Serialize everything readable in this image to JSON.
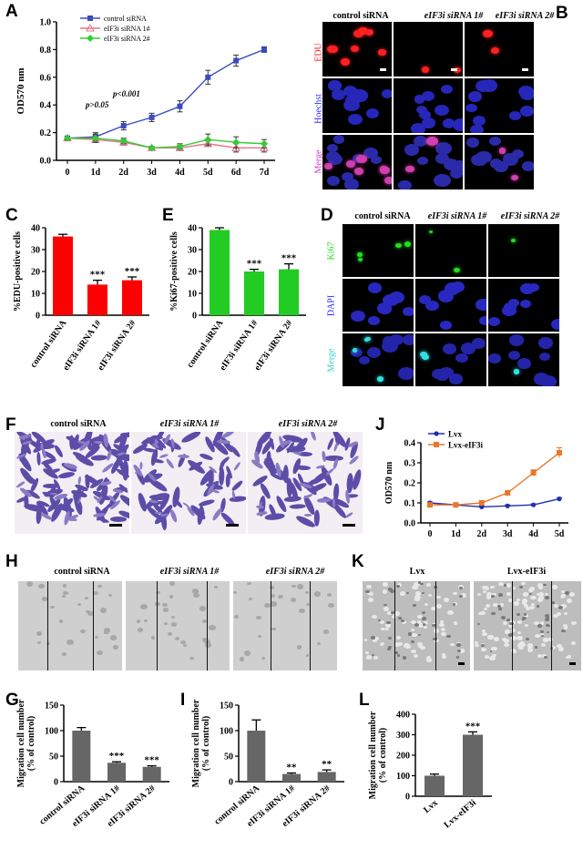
{
  "panels": {
    "A": "A",
    "B": "B",
    "C": "C",
    "D": "D",
    "E": "E",
    "F": "F",
    "G": "G",
    "H": "H",
    "I": "I",
    "J": "J",
    "K": "K",
    "L": "L"
  },
  "colors": {
    "control": "#3b4cc0",
    "si1": "#e6738a",
    "si2": "#33cc33",
    "red_bar": "#ff0000",
    "green_bar": "#22cc22",
    "gray_bar": "#666666",
    "lvx": "#1f2fb0",
    "lvx_eif3i": "#e8782a",
    "edu": "#ff2020",
    "hoechst": "#2a2aff",
    "ki67": "#22dd22",
    "merge_label": "#cc33cc",
    "merge_d": "#33cccc"
  },
  "chart_data": [
    {
      "id": "A",
      "type": "line",
      "xlabel": "",
      "ylabel": "OD570 nm",
      "ylim": [
        0,
        1.0
      ],
      "yticks": [
        "0.0",
        "0.2",
        "0.4",
        "0.6",
        "0.8",
        "1.0"
      ],
      "categories": [
        "0",
        "1d",
        "2d",
        "3d",
        "4d",
        "5d",
        "6d",
        "7d"
      ],
      "series": [
        {
          "name": "control siRNA",
          "values": [
            0.16,
            0.17,
            0.25,
            0.31,
            0.39,
            0.6,
            0.72,
            0.8
          ]
        },
        {
          "name": "eIF3i siRNA 1#",
          "values": [
            0.16,
            0.15,
            0.13,
            0.09,
            0.09,
            0.12,
            0.09,
            0.09
          ]
        },
        {
          "name": "eIF3i siRNA 2#",
          "values": [
            0.16,
            0.16,
            0.14,
            0.09,
            0.1,
            0.15,
            0.13,
            0.12
          ]
        }
      ],
      "annotations": [
        "p>0.05",
        "p<0.001"
      ]
    },
    {
      "id": "C",
      "type": "bar",
      "ylabel": "%EDU-positive cells",
      "ylim": [
        0,
        40
      ],
      "yticks": [
        "0",
        "10",
        "20",
        "30",
        "40"
      ],
      "categories": [
        "control siRNA",
        "eIF3i siRNA 1#",
        "eIF3i siRNA 2#"
      ],
      "values": [
        36,
        14,
        16
      ],
      "errors": [
        1,
        2,
        1.5
      ],
      "sig": [
        "",
        "***",
        "***"
      ]
    },
    {
      "id": "E",
      "type": "bar",
      "ylabel": "%Ki67-positive cells",
      "ylim": [
        0,
        40
      ],
      "yticks": [
        "0",
        "10",
        "20",
        "30",
        "40"
      ],
      "categories": [
        "control siRNA",
        "eIF3i siRNA 1#",
        "eIF3i siRNA 2#"
      ],
      "values": [
        39,
        20,
        21
      ],
      "errors": [
        1,
        1,
        2.5
      ],
      "sig": [
        "",
        "***",
        "***"
      ]
    },
    {
      "id": "J",
      "type": "line",
      "ylabel": "OD570 nm",
      "ylim": [
        0,
        0.4
      ],
      "yticks": [
        "0.0",
        "0.1",
        "0.2",
        "0.3",
        "0.4"
      ],
      "categories": [
        "0",
        "1d",
        "2d",
        "3d",
        "4d",
        "5d"
      ],
      "series": [
        {
          "name": "Lvx",
          "values": [
            0.1,
            0.09,
            0.08,
            0.085,
            0.09,
            0.12
          ]
        },
        {
          "name": "Lvx-eIF3i",
          "values": [
            0.09,
            0.09,
            0.1,
            0.15,
            0.25,
            0.35
          ]
        }
      ]
    },
    {
      "id": "G",
      "type": "bar",
      "ylabel": "Migration cell number\n(% of control)",
      "ylim": [
        0,
        150
      ],
      "yticks": [
        "0",
        "50",
        "100",
        "150"
      ],
      "categories": [
        "control siRNA",
        "eIF3i siRNA 1#",
        "eIF3i siRNA 2#"
      ],
      "values": [
        100,
        37,
        29
      ],
      "errors": [
        6,
        2,
        2
      ],
      "sig": [
        "",
        "***",
        "***"
      ]
    },
    {
      "id": "I",
      "type": "bar",
      "ylabel": "Migration cell number\n(% of control)",
      "ylim": [
        0,
        150
      ],
      "yticks": [
        "0",
        "50",
        "100",
        "150"
      ],
      "categories": [
        "control siRNA",
        "eIF3i siRNA 1#",
        "eIF3i siRNA 2#"
      ],
      "values": [
        100,
        15,
        19
      ],
      "errors": [
        21,
        2,
        4
      ],
      "sig": [
        "",
        "**",
        "**"
      ]
    },
    {
      "id": "L",
      "type": "bar",
      "ylabel": "Migration cell number\n(% of control)",
      "ylim": [
        0,
        400
      ],
      "yticks": [
        "0",
        "100",
        "200",
        "300",
        "400"
      ],
      "categories": [
        "Lvx",
        "Lvx-eIF3i"
      ],
      "values": [
        100,
        300
      ],
      "errors": [
        8,
        14
      ],
      "sig": [
        "",
        "***"
      ]
    }
  ],
  "B": {
    "cols": [
      "control siRNA",
      "eIF3i siRNA 1#",
      "eIF3i siRNA 2#"
    ],
    "rows": [
      "EDU",
      "Hoechst",
      "Merge"
    ]
  },
  "D": {
    "cols": [
      "control siRNA",
      "eIF3i siRNA 1#",
      "eIF3i siRNA 2#"
    ],
    "rows": [
      "Ki67",
      "DAPI",
      "Merge"
    ]
  },
  "F": {
    "cols": [
      "control siRNA",
      "eIF3i siRNA 1#",
      "eIF3i siRNA 2#"
    ]
  },
  "H": {
    "cols": [
      "control siRNA",
      "eIF3i siRNA 1#",
      "eIF3i siRNA 2#"
    ]
  },
  "K": {
    "cols": [
      "Lvx",
      "Lvx-eIF3i"
    ]
  }
}
